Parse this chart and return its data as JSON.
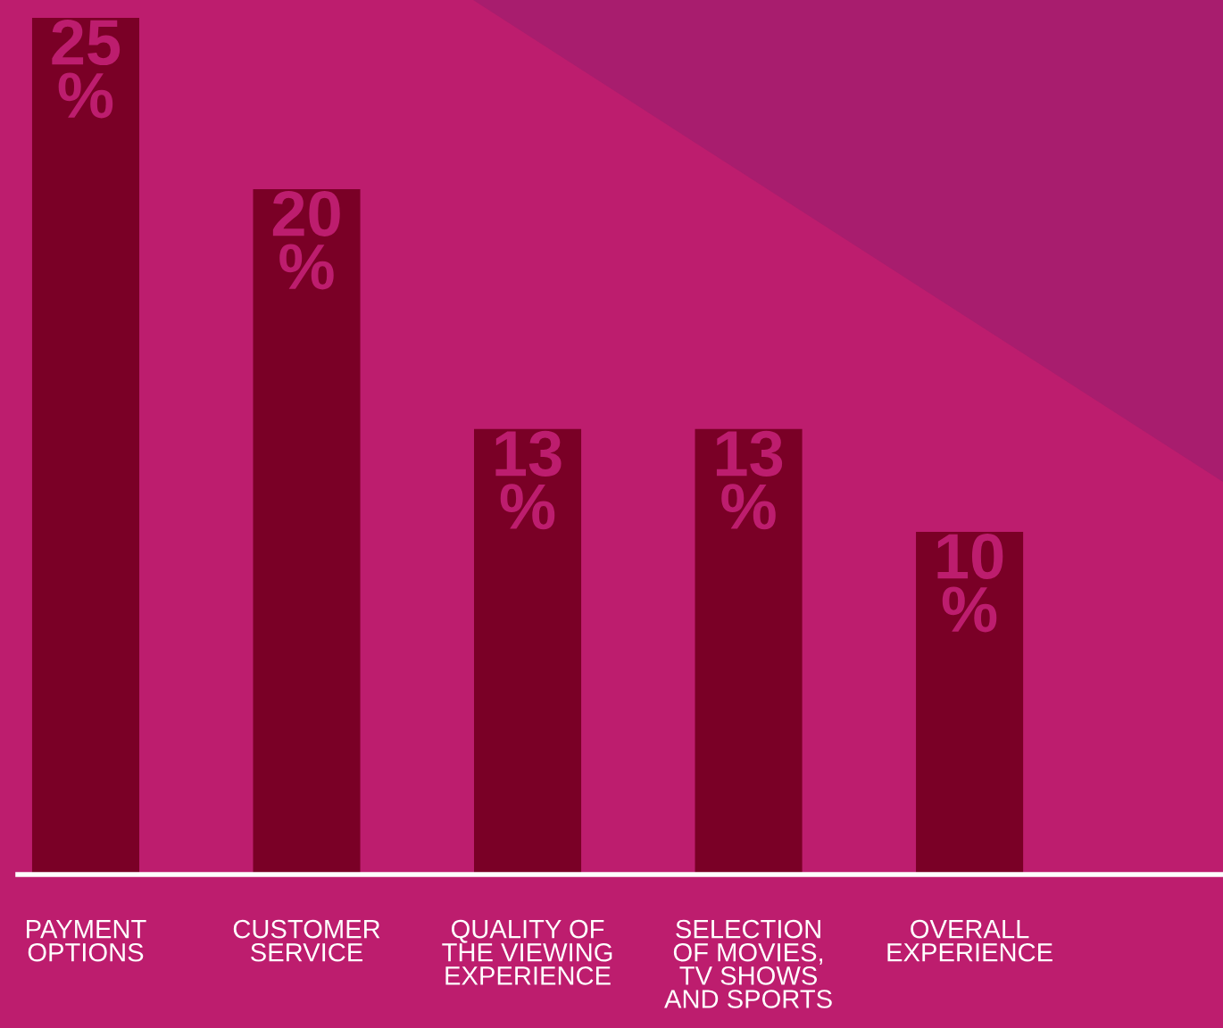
{
  "chart_data": {
    "type": "bar",
    "categories": [
      "PAYMENT\nOPTIONS",
      "CUSTOMER\nSERVICE",
      "QUALITY OF\nTHE VIEWING\nEXPERIENCE",
      "SELECTION\nOF MOVIES,\nTV SHOWS\nAND SPORTS",
      "OVERALL\nEXPERIENCE"
    ],
    "values": [
      25,
      20,
      13,
      13,
      10
    ],
    "value_labels": [
      "25\n%",
      "20\n%",
      "13\n%",
      "13\n%",
      "10\n%"
    ],
    "color": "#7a0026",
    "grid": false,
    "legend": false
  }
}
